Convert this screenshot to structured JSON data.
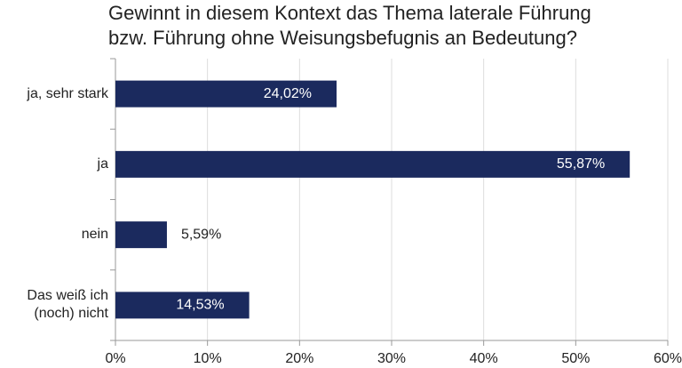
{
  "chart_data": {
    "type": "hbar",
    "title": [
      "Gewinnt in diesem Kontext das Thema laterale Führung",
      "bzw. Führung ohne Weisungsbefugnis an Bedeutung?"
    ],
    "categories": [
      "ja, sehr stark",
      "ja",
      "nein",
      "Das weiß ich (noch) nicht"
    ],
    "values": [
      24.02,
      55.87,
      5.59,
      14.53
    ],
    "value_labels": [
      "24,02%",
      "55,87%",
      "5,59%",
      "14,53%"
    ],
    "color": "#1b2a5e",
    "xlim": [
      0,
      60
    ],
    "xticks": [
      {
        "value": 0,
        "label": "0%"
      },
      {
        "value": 10,
        "label": "10%"
      },
      {
        "value": 20,
        "label": "20%"
      },
      {
        "value": 30,
        "label": "30%"
      },
      {
        "value": 40,
        "label": "40%"
      },
      {
        "value": 50,
        "label": "50%"
      },
      {
        "value": 60,
        "label": "60%"
      }
    ],
    "grid": true
  }
}
